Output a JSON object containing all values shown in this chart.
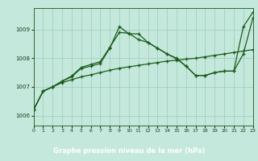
{
  "title": "Graphe pression niveau de la mer (hPa)",
  "bg_color": "#c5e8dd",
  "plot_bg_color": "#c5e8dd",
  "label_bg_color": "#2d6e2d",
  "label_text_color": "#ffffff",
  "grid_color": "#a0cfc0",
  "line_color": "#1a5c1a",
  "xlim": [
    0,
    23
  ],
  "ylim": [
    1005.65,
    1009.75
  ],
  "yticks": [
    1006,
    1007,
    1008,
    1009
  ],
  "xticks": [
    0,
    1,
    2,
    3,
    4,
    5,
    6,
    7,
    8,
    9,
    10,
    11,
    12,
    13,
    14,
    15,
    16,
    17,
    18,
    19,
    20,
    21,
    22,
    23
  ],
  "s1_x": [
    0,
    1,
    2,
    3,
    4,
    5,
    6,
    7,
    8,
    9,
    10,
    11,
    12,
    13,
    14,
    15,
    16,
    17,
    18,
    19,
    20,
    21,
    22,
    23
  ],
  "s1_y": [
    1006.2,
    1006.85,
    1007.0,
    1007.15,
    1007.25,
    1007.35,
    1007.42,
    1007.5,
    1007.58,
    1007.65,
    1007.7,
    1007.75,
    1007.8,
    1007.85,
    1007.9,
    1007.93,
    1007.97,
    1008.0,
    1008.05,
    1008.1,
    1008.15,
    1008.2,
    1008.25,
    1008.3
  ],
  "s2_x": [
    0,
    1,
    2,
    3,
    4,
    5,
    6,
    7,
    8,
    9,
    10,
    11,
    12,
    13,
    14,
    15,
    16,
    17,
    18,
    19,
    20,
    21,
    22,
    23
  ],
  "s2_y": [
    1006.2,
    1006.85,
    1007.0,
    1007.2,
    1007.35,
    1007.65,
    1007.72,
    1007.82,
    1008.35,
    1009.1,
    1008.85,
    1008.85,
    1008.55,
    1008.35,
    1008.15,
    1008.0,
    1007.72,
    1007.4,
    1007.4,
    1007.5,
    1007.55,
    1007.55,
    1008.15,
    1009.4
  ],
  "s3_x": [
    0,
    1,
    2,
    3,
    4,
    5,
    6,
    7,
    8,
    9,
    10,
    11,
    12,
    13,
    14,
    15,
    16,
    17,
    18,
    19,
    20,
    21,
    22,
    23
  ],
  "s3_y": [
    1006.2,
    1006.85,
    1007.0,
    1007.2,
    1007.38,
    1007.68,
    1007.78,
    1007.88,
    1008.38,
    1008.9,
    1008.87,
    1008.65,
    1008.55,
    1008.35,
    1008.15,
    1007.98,
    1007.72,
    1007.4,
    1007.4,
    1007.5,
    1007.55,
    1007.55,
    1009.1,
    1009.6
  ]
}
